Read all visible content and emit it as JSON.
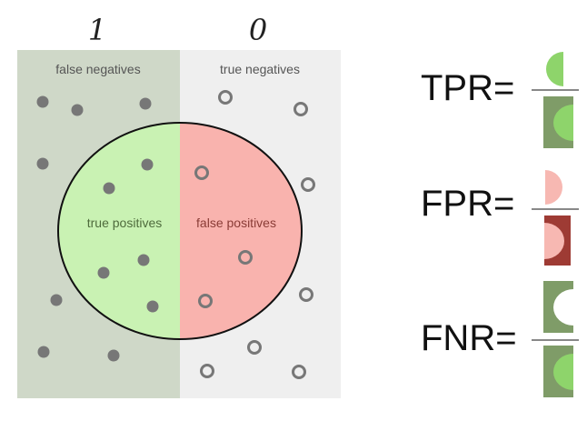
{
  "headers": {
    "left": "1",
    "right": "0"
  },
  "regions": {
    "false_negatives": "false negatives",
    "true_negatives": "true negatives",
    "true_positives": "true positives",
    "false_positives": "false positives"
  },
  "metrics": [
    {
      "name": "TPR",
      "label": "TPR="
    },
    {
      "name": "FPR",
      "label": "FPR="
    },
    {
      "name": "FNR",
      "label": "FNR="
    }
  ],
  "colors": {
    "positive_side": "#cfd8c8",
    "negative_side": "#efefef",
    "true_positive": "#c9f2b3",
    "false_positive": "#f9b3ae",
    "icon_dark_green": "#7f9c68",
    "icon_light_green": "#8ed46b",
    "icon_pink": "#f7b8b2",
    "icon_dark_red": "#9e3b34",
    "dot": "#777777"
  }
}
